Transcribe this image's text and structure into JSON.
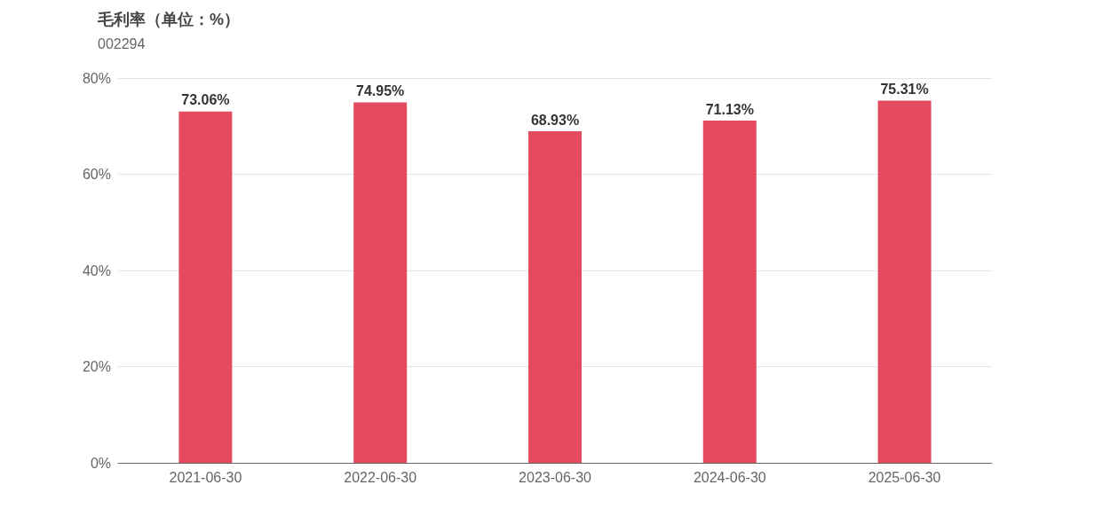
{
  "chart_data": {
    "type": "bar",
    "title": "毛利率（单位：%）",
    "subtitle": "002294",
    "categories": [
      "2021-06-30",
      "2022-06-30",
      "2023-06-30",
      "2024-06-30",
      "2025-06-30"
    ],
    "values": [
      73.06,
      74.95,
      68.93,
      71.13,
      75.31
    ],
    "value_labels": [
      "73.06%",
      "74.95%",
      "68.93%",
      "71.13%",
      "75.31%"
    ],
    "color": "#e44b5e",
    "ylim": [
      0,
      80
    ],
    "yticks": [
      {
        "value": 0,
        "label": "0%"
      },
      {
        "value": 20,
        "label": "20%"
      },
      {
        "value": 40,
        "label": "40%"
      },
      {
        "value": 60,
        "label": "60%"
      },
      {
        "value": 80,
        "label": "80%"
      }
    ],
    "grid": "y"
  }
}
